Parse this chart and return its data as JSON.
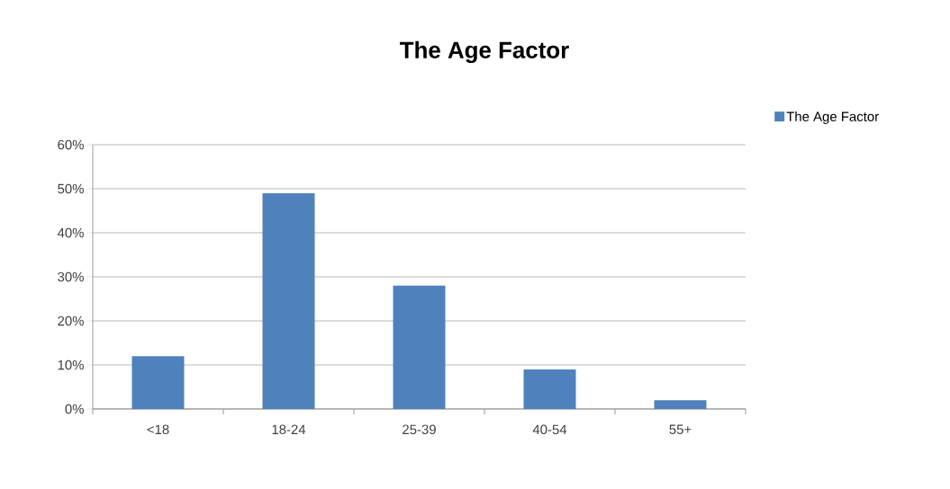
{
  "chart_data": {
    "type": "bar",
    "title": "The Age Factor",
    "categories": [
      "<18",
      "18-24",
      "25-39",
      "40-54",
      "55+"
    ],
    "series": [
      {
        "name": "The Age Factor",
        "color": "#4f81bd",
        "values": [
          12,
          49,
          28,
          9,
          2
        ]
      }
    ],
    "ylim": [
      0,
      60
    ],
    "yticks": [
      {
        "value": 0,
        "label": "0%"
      },
      {
        "value": 10,
        "label": "10%"
      },
      {
        "value": 20,
        "label": "20%"
      },
      {
        "value": 30,
        "label": "30%"
      },
      {
        "value": 40,
        "label": "40%"
      },
      {
        "value": 50,
        "label": "50%"
      },
      {
        "value": 60,
        "label": "60%"
      }
    ],
    "grid": "y",
    "legend": "top right"
  }
}
